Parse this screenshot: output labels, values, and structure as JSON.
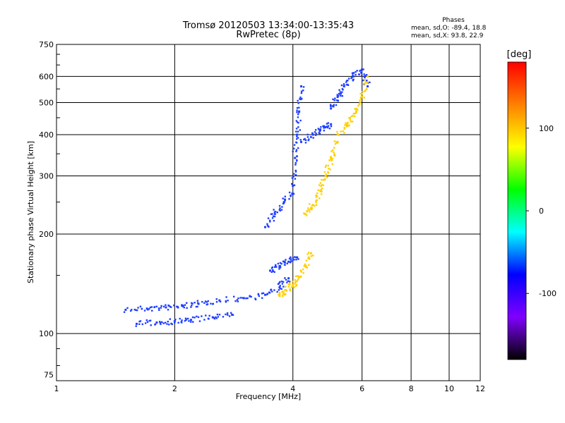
{
  "chart_data": {
    "type": "scatter",
    "title": "Tromsø 20120503 13:34:00-13:35:43",
    "subtitle": "RwPretec (8p)",
    "xlabel": "Frequency [MHz]",
    "ylabel": "Stationary phase Virtual Height [km]",
    "x_scale": "log",
    "y_scale": "log",
    "xlim": [
      1,
      12
    ],
    "ylim": [
      72,
      750
    ],
    "x_ticks": [
      1,
      2,
      4,
      6,
      8,
      10,
      12
    ],
    "y_ticks": [
      75,
      100,
      200,
      300,
      400,
      500,
      600,
      750
    ],
    "grid": true,
    "phase_legend": {
      "title": "Phases",
      "line1": "mean, sd,O: -89.4, 18.8",
      "line2": "mean, sd,X: 93.8, 22.9"
    },
    "colorbar": {
      "label": "[deg]",
      "range": [
        -180,
        180
      ],
      "ticks": [
        100,
        0,
        -100
      ],
      "colors": [
        "#ff0000",
        "#ff8000",
        "#ffff00",
        "#00ff00",
        "#00ffff",
        "#0000ff",
        "#8000ff",
        "#000000"
      ]
    },
    "series": [
      {
        "mode": "O",
        "color": "#2040ff",
        "segments": [
          {
            "x": [
              1.5,
              1.7,
              1.9,
              2.1,
              2.3,
              2.6,
              3.0,
              3.4,
              3.7,
              3.9
            ],
            "y": [
              118,
              119,
              120,
              121,
              123,
              126,
              128,
              131,
              138,
              147
            ]
          },
          {
            "x": [
              1.6,
              1.8,
              2.0,
              2.2,
              2.5,
              2.8
            ],
            "y": [
              107,
              108,
              109,
              110,
              112,
              114
            ]
          },
          {
            "x": [
              3.4,
              3.6,
              3.8,
              4.0
            ],
            "y": [
              210,
              230,
              250,
              265
            ]
          },
          {
            "x": [
              4.0,
              4.05,
              4.1,
              4.15,
              4.2
            ],
            "y": [
              280,
              340,
              400,
              470,
              560
            ]
          },
          {
            "x": [
              4.2,
              4.5,
              4.8,
              5.0
            ],
            "y": [
              380,
              400,
              420,
              430
            ]
          },
          {
            "x": [
              5.0,
              5.2,
              5.4,
              5.7,
              6.0,
              6.2
            ],
            "y": [
              480,
              520,
              560,
              600,
              630,
              560
            ]
          },
          {
            "x": [
              3.5,
              3.7,
              3.9,
              4.1
            ],
            "y": [
              155,
              160,
              165,
              170
            ]
          }
        ]
      },
      {
        "mode": "X",
        "color": "#ffd000",
        "segments": [
          {
            "x": [
              3.7,
              3.85,
              4.0,
              4.15,
              4.3,
              4.45
            ],
            "y": [
              130,
              135,
              140,
              148,
              160,
              175
            ]
          },
          {
            "x": [
              4.3,
              4.5,
              4.7,
              4.85,
              5.0,
              5.2
            ],
            "y": [
              230,
              245,
              270,
              300,
              340,
              380
            ]
          },
          {
            "x": [
              5.2,
              5.5,
              5.8,
              6.0,
              6.2
            ],
            "y": [
              400,
              430,
              470,
              520,
              600
            ]
          }
        ]
      }
    ]
  }
}
